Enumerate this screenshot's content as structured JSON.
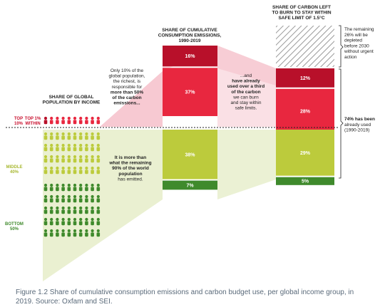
{
  "chart_data": {
    "type": "bar",
    "groups": [
      "Top 1%",
      "Top 10% within",
      "Middle 40%",
      "Bottom 50%"
    ],
    "columns": [
      {
        "title": [
          "SHARE OF CUMULATIVE",
          "CONSUMPTION EMISSIONS,",
          "1990-2019"
        ],
        "segments": [
          {
            "group": "Top 1%",
            "value": 16,
            "label": "16%"
          },
          {
            "group": "Top 10% within",
            "value": 37,
            "label": "37%"
          },
          {
            "group": "Middle 40%",
            "value": 38,
            "label": "38%"
          },
          {
            "group": "Bottom 50%",
            "value": 7,
            "label": "7%"
          }
        ]
      },
      {
        "title": [
          "SHARE OF CARBON LEFT",
          "TO BURN TO STAY WITHIN",
          "SAFE LIMIT OF 1.5°C"
        ],
        "segments": [
          {
            "group": "Remaining",
            "value": 26,
            "label": ""
          },
          {
            "group": "Top 1%",
            "value": 12,
            "label": "12%"
          },
          {
            "group": "Top 10% within",
            "value": 28,
            "label": "28%"
          },
          {
            "group": "Middle 40%",
            "value": 29,
            "label": "29%"
          },
          {
            "group": "Bottom 50%",
            "value": 5,
            "label": "5%"
          }
        ]
      }
    ],
    "population_title": [
      "SHARE OF GLOBAL",
      "POPULATION BY INCOME"
    ],
    "group_labels": {
      "top_outer": [
        "TOP",
        "10%"
      ],
      "top_inner": [
        "TOP 1%",
        "WITHIN"
      ],
      "middle": [
        "MIDDLE",
        "40%"
      ],
      "bottom": [
        "BOTTOM",
        "50%"
      ]
    },
    "annotations": {
      "rich": [
        "Only 10% of the",
        "global population,",
        "the richest, is",
        "responsible for",
        "more than 50%",
        "of the carbon",
        "emissions..."
      ],
      "rest": [
        "It is more than",
        "what the remaining",
        "90% of the world",
        "population",
        "has emitted."
      ],
      "used_third": [
        "...and",
        "have already",
        "used over a third",
        "of the carbon",
        "we can burn",
        "and stay within",
        "safe limits."
      ],
      "remaining": [
        "The remaining",
        "26% will be",
        "depleted",
        "before 2030",
        "without urgent",
        "action"
      ],
      "used": [
        "74% has been",
        "already used",
        "(1990-2019)"
      ]
    },
    "colors": {
      "top1": "#b8102a",
      "top10": "#e8273f",
      "middle": "#bccb3c",
      "bottom": "#3f8a2c",
      "pink_band": "#f6c7cf",
      "green_band": "#e9efcf",
      "text_red": "#c8102e",
      "text_green": "#a8b832"
    }
  },
  "caption": "Figure 1.2 Share of cumulative consumption emissions and carbon budget use, per global income group, in 2019. Source: Oxfam and SEI."
}
